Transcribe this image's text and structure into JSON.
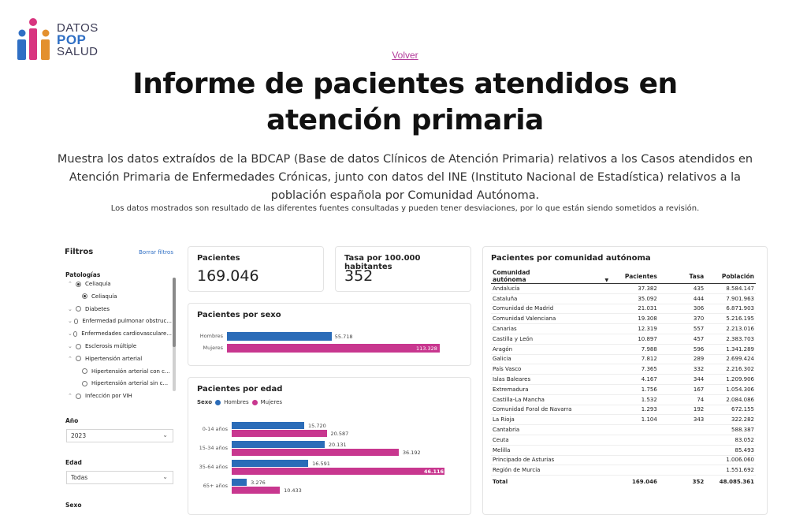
{
  "logo": {
    "line1": "DATOS",
    "line2": "POP",
    "line3": "SALUD"
  },
  "volver": "Volver",
  "title": "Informe de pacientes atendidos en atención primaria",
  "description": "Muestra los datos extraídos de la BDCAP (Base de datos Clínicos de Atención Primaria) relativos a los Casos atendidos en Atención Primaria de Enfermedades Crónicas, junto con datos del INE (Instituto Nacional de Estadística) relativos a la población española por Comunidad Autónoma.",
  "note": "Los datos mostrados son resultado de las diferentes fuentes consultadas y pueden tener desviaciones, por lo que están siendo sometidos a revisión.",
  "filters": {
    "title": "Filtros",
    "clear": "Borrar filtros",
    "patologias_label": "Patologías",
    "items": [
      {
        "label": "Celiaquía",
        "level": 0,
        "selected": true,
        "chev": "⌃"
      },
      {
        "label": "Celiaquía",
        "level": 1,
        "selected": true,
        "chev": ""
      },
      {
        "label": "Diabetes",
        "level": 0,
        "selected": false,
        "chev": "⌄"
      },
      {
        "label": "Enfermedad pulmonar obstruc...",
        "level": 0,
        "selected": false,
        "chev": "⌄"
      },
      {
        "label": "Enfermedades cardiovasculare...",
        "level": 0,
        "selected": false,
        "chev": "⌄"
      },
      {
        "label": "Esclerosis múltiple",
        "level": 0,
        "selected": false,
        "chev": "⌄"
      },
      {
        "label": "Hipertensión arterial",
        "level": 0,
        "selected": false,
        "chev": "⌃"
      },
      {
        "label": "Hipertensión arterial con c...",
        "level": 1,
        "selected": false,
        "chev": ""
      },
      {
        "label": "Hipertensión arterial sin c...",
        "level": 1,
        "selected": false,
        "chev": ""
      },
      {
        "label": "Infección por VIH",
        "level": 0,
        "selected": false,
        "chev": "⌃"
      }
    ],
    "anio_label": "Año",
    "anio_value": "2023",
    "edad_label": "Edad",
    "edad_value": "Todas",
    "sexo_label": "Sexo"
  },
  "kpi": {
    "pacientes_label": "Pacientes",
    "pacientes_value": "169.046",
    "tasa_label": "Tasa por 100.000 habitantes",
    "tasa_value": "352"
  },
  "colors": {
    "hombres": "#2b6cb8",
    "mujeres": "#c8378f"
  },
  "sexo_chart": {
    "title": "Pacientes por sexo",
    "max": 113328,
    "bars": [
      {
        "label": "Hombres",
        "value": 55718,
        "display": "55.718",
        "color": "#2b6cb8"
      },
      {
        "label": "Mujeres",
        "value": 113328,
        "display": "113.328",
        "color": "#c8378f"
      }
    ]
  },
  "edad_chart": {
    "title": "Pacientes por edad",
    "legend_title": "Sexo",
    "legend": [
      "Hombres",
      "Mujeres"
    ],
    "max": 46116,
    "groups": [
      {
        "label": "0-14 años",
        "hombres": 15720,
        "hombres_display": "15.720",
        "mujeres": 20587,
        "mujeres_display": "20.587"
      },
      {
        "label": "15-34 años",
        "hombres": 20131,
        "hombres_display": "20.131",
        "mujeres": 36192,
        "mujeres_display": "36.192"
      },
      {
        "label": "35-64 años",
        "hombres": 16591,
        "hombres_display": "16.591",
        "mujeres": 46116,
        "mujeres_display": "46.116"
      },
      {
        "label": "65+ años",
        "hombres": 3276,
        "hombres_display": "3.276",
        "mujeres": 10433,
        "mujeres_display": "10.433"
      }
    ]
  },
  "ccaa_table": {
    "title": "Pacientes por comunidad autónoma",
    "headers": [
      "Comunidad autónoma",
      "Pacientes",
      "Tasa",
      "Población"
    ],
    "rows": [
      [
        "Andalucía",
        "37.382",
        "435",
        "8.584.147"
      ],
      [
        "Cataluña",
        "35.092",
        "444",
        "7.901.963"
      ],
      [
        "Comunidad de Madrid",
        "21.031",
        "306",
        "6.871.903"
      ],
      [
        "Comunidad Valenciana",
        "19.308",
        "370",
        "5.216.195"
      ],
      [
        "Canarias",
        "12.319",
        "557",
        "2.213.016"
      ],
      [
        "Castilla y León",
        "10.897",
        "457",
        "2.383.703"
      ],
      [
        "Aragón",
        "7.988",
        "596",
        "1.341.289"
      ],
      [
        "Galicia",
        "7.812",
        "289",
        "2.699.424"
      ],
      [
        "País Vasco",
        "7.365",
        "332",
        "2.216.302"
      ],
      [
        "Islas Baleares",
        "4.167",
        "344",
        "1.209.906"
      ],
      [
        "Extremadura",
        "1.756",
        "167",
        "1.054.306"
      ],
      [
        "Castilla-La Mancha",
        "1.532",
        "74",
        "2.084.086"
      ],
      [
        "Comunidad Foral de Navarra",
        "1.293",
        "192",
        "672.155"
      ],
      [
        "La Rioja",
        "1.104",
        "343",
        "322.282"
      ],
      [
        "Cantabria",
        "",
        "",
        "588.387"
      ],
      [
        "Ceuta",
        "",
        "",
        "83.052"
      ],
      [
        "Melilla",
        "",
        "",
        "85.493"
      ],
      [
        "Principado de Asturias",
        "",
        "",
        "1.006.060"
      ],
      [
        "Región de Murcia",
        "",
        "",
        "1.551.692"
      ]
    ],
    "total": [
      "Total",
      "169.046",
      "352",
      "48.085.361"
    ]
  }
}
